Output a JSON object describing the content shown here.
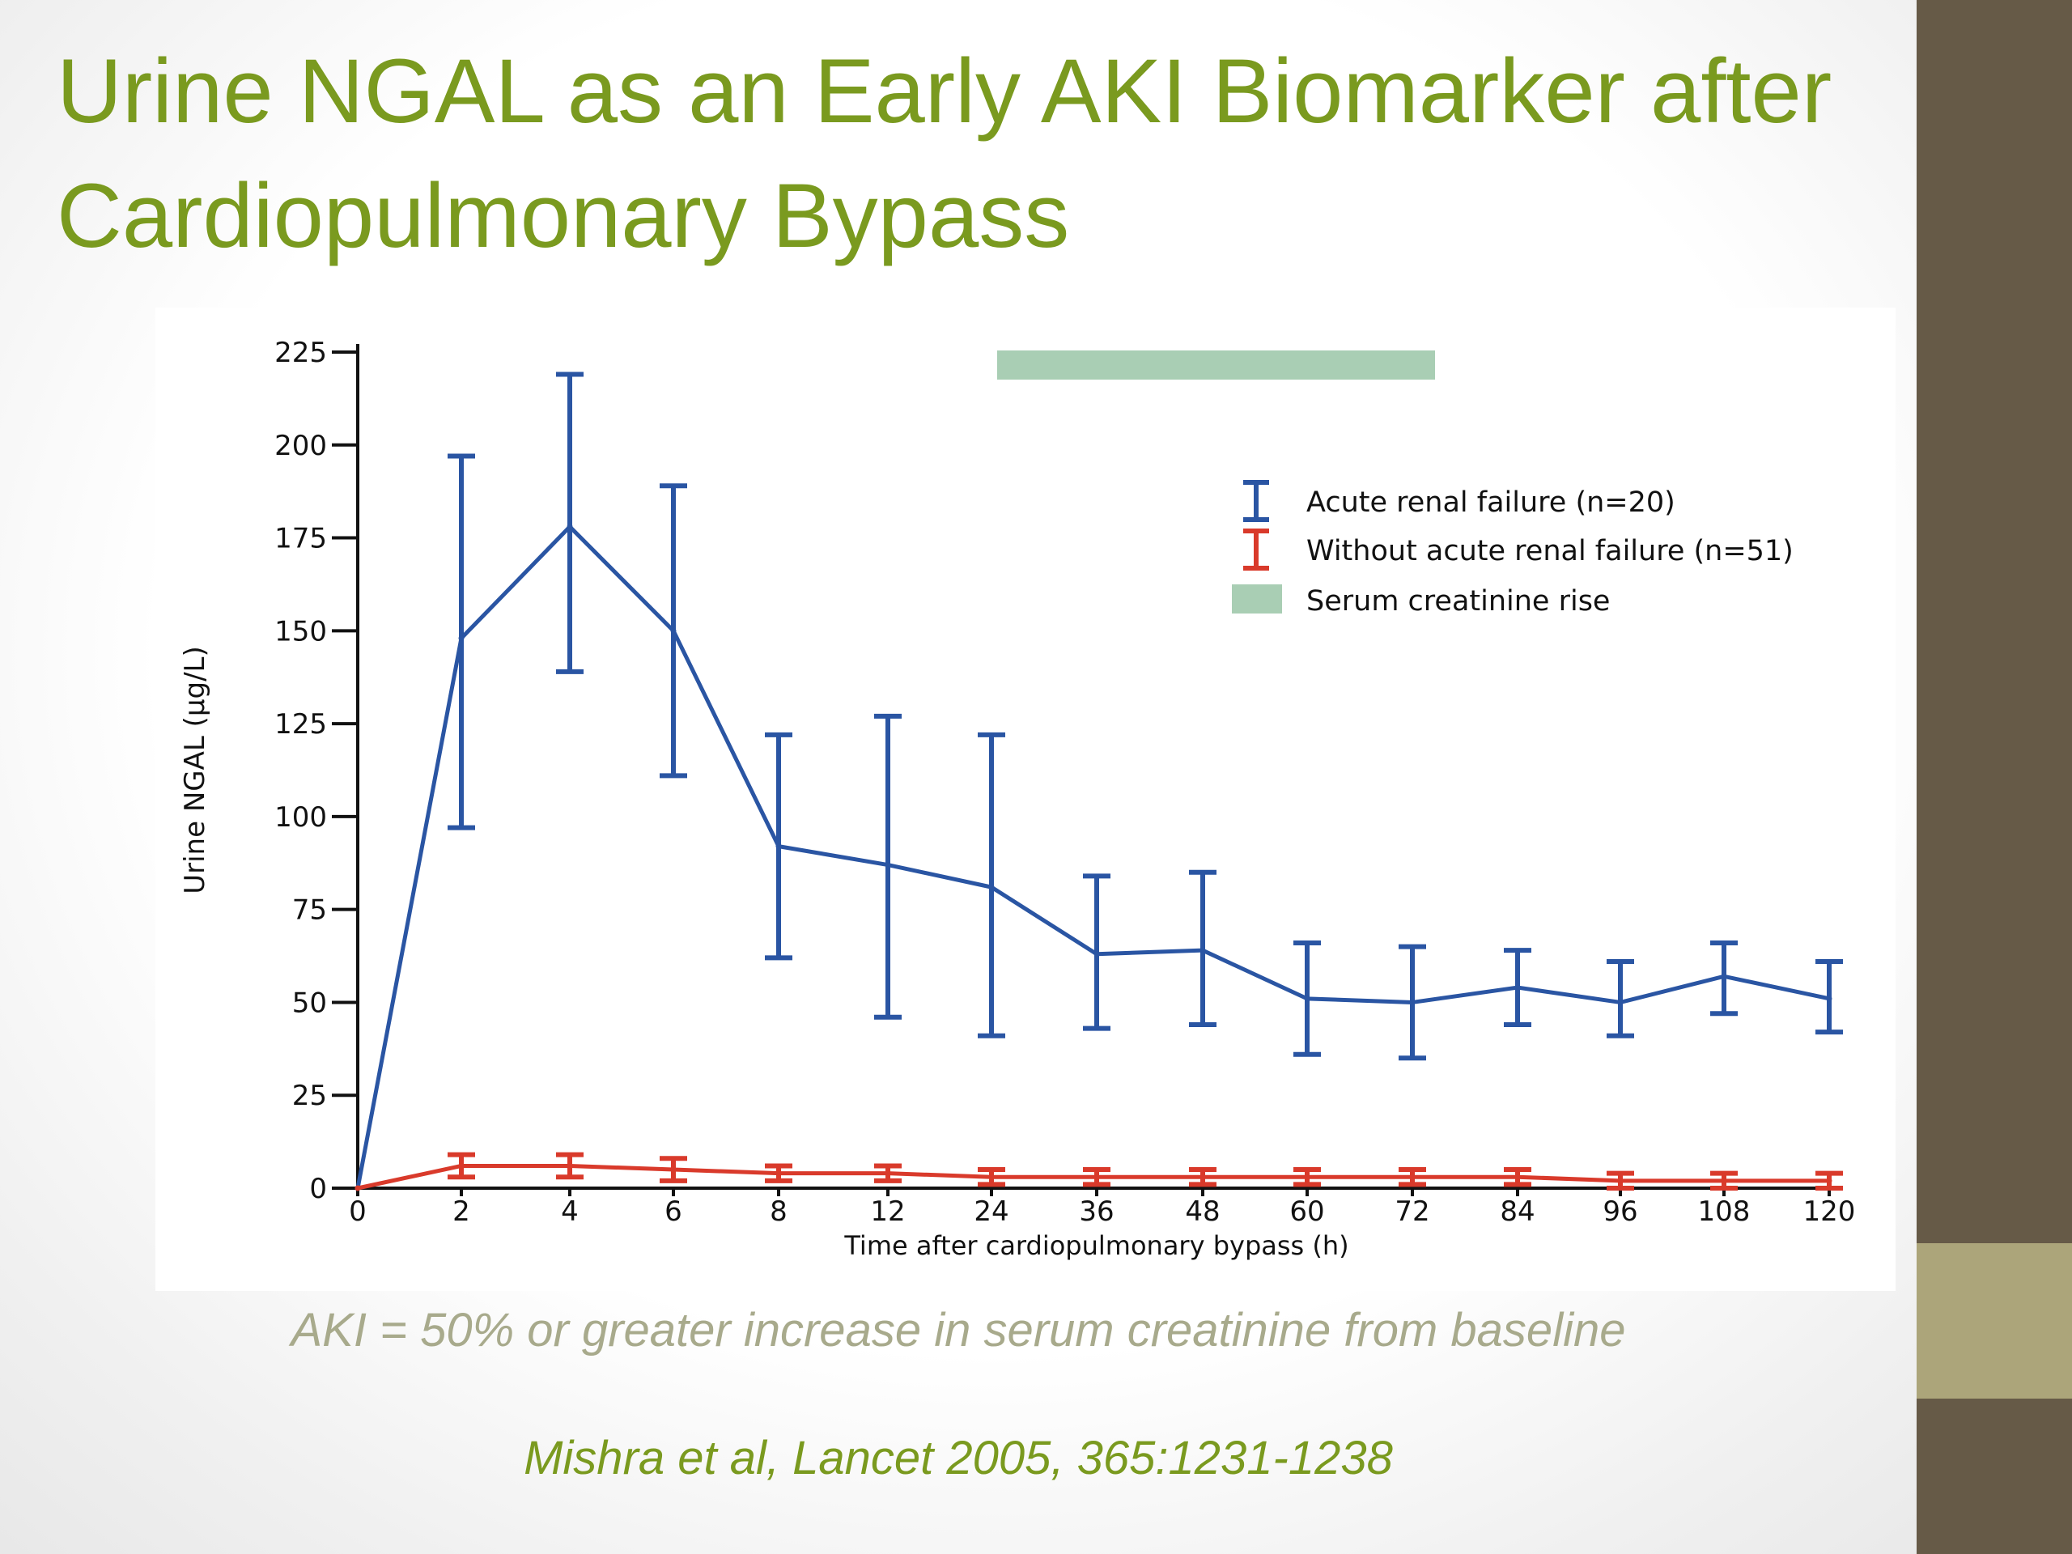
{
  "slide": {
    "title": "Urine NGAL as an Early AKI Biomarker after Cardiopulmonary Bypass",
    "definition": "AKI = 50% or greater increase in serum creatinine from baseline",
    "citation": "Mishra et al, Lancet 2005, 365:1231-1238"
  },
  "colors": {
    "title": "#7a9a1f",
    "aki_series": "#2a55a3",
    "no_aki_series": "#d93a2b",
    "creatinine_band": "#a9ceb4",
    "sidebar": "#665a47",
    "sidebar_accent": "#aca57a"
  },
  "chart_data": {
    "type": "line",
    "title": "",
    "xlabel": "Time after cardiopulmonary bypass (h)",
    "ylabel": "Urine NGAL (µg/L)",
    "categories": [
      "0",
      "2",
      "4",
      "6",
      "8",
      "12",
      "24",
      "36",
      "48",
      "60",
      "72",
      "84",
      "96",
      "108",
      "120"
    ],
    "ylim": [
      0,
      225
    ],
    "yticks": [
      0,
      25,
      50,
      75,
      100,
      125,
      150,
      175,
      200,
      225
    ],
    "grid": false,
    "legend_position": "top-right",
    "series": [
      {
        "name": "Acute renal failure (n=20)",
        "color": "#2a55a3",
        "values": [
          0,
          148,
          178,
          150,
          92,
          87,
          81,
          63,
          64,
          51,
          50,
          54,
          50,
          57,
          51
        ],
        "err_low": [
          0,
          97,
          139,
          111,
          62,
          46,
          41,
          43,
          44,
          36,
          35,
          44,
          41,
          47,
          42
        ],
        "err_high": [
          0,
          197,
          219,
          189,
          122,
          127,
          122,
          84,
          85,
          66,
          65,
          64,
          61,
          66,
          61
        ]
      },
      {
        "name": "Without acute renal failure (n=51)",
        "color": "#d93a2b",
        "values": [
          0,
          6,
          6,
          5,
          4,
          4,
          3,
          3,
          3,
          3,
          3,
          3,
          2,
          2,
          2
        ],
        "err_low": [
          0,
          3,
          3,
          2,
          2,
          2,
          1,
          1,
          1,
          1,
          1,
          1,
          0,
          0,
          0
        ],
        "err_high": [
          0,
          9,
          9,
          8,
          6,
          6,
          5,
          5,
          5,
          5,
          5,
          5,
          4,
          4,
          4
        ]
      }
    ],
    "annotations": [
      {
        "type": "band",
        "name": "Serum creatinine rise",
        "color": "#a9ceb4",
        "x_start": "24",
        "x_end": "72"
      }
    ]
  }
}
